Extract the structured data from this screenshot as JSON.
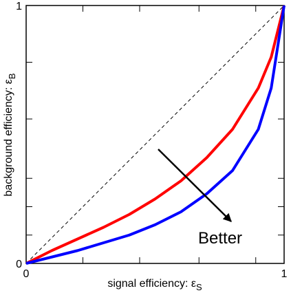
{
  "chart_data": {
    "type": "line",
    "xlabel": "signal efficiency: ε",
    "xlabel_sub": "S",
    "ylabel": "background efficiency: ε",
    "ylabel_sub": "B",
    "annotation": "Better",
    "xlim": [
      0,
      1
    ],
    "ylim": [
      0,
      1
    ],
    "xticks": [
      0,
      1
    ],
    "yticks": [
      0,
      1
    ],
    "xminorticks": [
      0.22,
      0.44,
      0.67,
      0.89
    ],
    "yminorticks": [
      0.11,
      0.22,
      0.33,
      0.56,
      0.78
    ],
    "series": [
      {
        "color": "#000000",
        "dashed": true,
        "x": [
          0,
          1
        ],
        "values": [
          0,
          1
        ]
      },
      {
        "color": "#ff0000",
        "dashed": false,
        "x": [
          0,
          0.1,
          0.2,
          0.3,
          0.4,
          0.5,
          0.6,
          0.7,
          0.8,
          0.9,
          0.95,
          1
        ],
        "values": [
          0,
          0.05,
          0.095,
          0.14,
          0.19,
          0.25,
          0.32,
          0.41,
          0.52,
          0.68,
          0.8,
          1
        ]
      },
      {
        "color": "#0000ff",
        "dashed": false,
        "x": [
          0,
          0.1,
          0.2,
          0.3,
          0.4,
          0.5,
          0.6,
          0.7,
          0.8,
          0.9,
          0.95,
          1
        ],
        "values": [
          0,
          0.025,
          0.05,
          0.08,
          0.11,
          0.15,
          0.2,
          0.27,
          0.36,
          0.52,
          0.68,
          1
        ]
      }
    ]
  }
}
